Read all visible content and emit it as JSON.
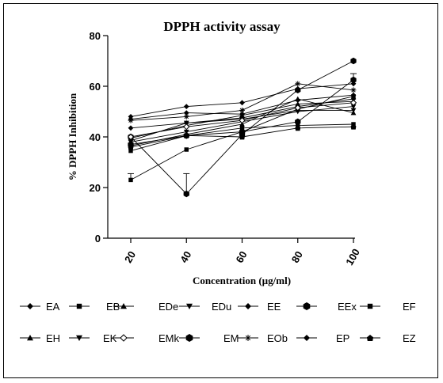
{
  "chart_data": {
    "type": "line",
    "title": "DPPH activity assay",
    "xlabel": "Concentration (µg/ml)",
    "ylabel": "% DPPH Inhibition",
    "x": [
      20,
      40,
      60,
      80,
      100
    ],
    "x_tick_labels": [
      "20",
      "40",
      "60",
      "80",
      "100"
    ],
    "ylim": [
      0,
      80
    ],
    "yticks": [
      0,
      20,
      40,
      60,
      80
    ],
    "y_tick_labels": [
      "0",
      "20",
      "40",
      "60",
      "80"
    ],
    "grid": false,
    "legend_position": "bottom",
    "series": [
      {
        "name": "EA",
        "marker": "diamond",
        "values": [
          43.5,
          45.5,
          47.5,
          52.0,
          55.0
        ]
      },
      {
        "name": "EB",
        "marker": "square",
        "values": [
          23.0,
          35.0,
          42.0,
          51.0,
          56.0
        ],
        "error": [
          2.5,
          0,
          0,
          0,
          0
        ]
      },
      {
        "name": "EDe",
        "marker": "triangle-up",
        "values": [
          39.5,
          44.5,
          48.5,
          53.0,
          54.0
        ]
      },
      {
        "name": "EDu",
        "marker": "triangle-down",
        "values": [
          38.0,
          42.0,
          46.0,
          50.0,
          52.0
        ]
      },
      {
        "name": "EE",
        "marker": "diamond",
        "values": [
          48.0,
          52.0,
          53.5,
          59.0,
          61.0
        ]
      },
      {
        "name": "EEx",
        "marker": "hexagon",
        "values": [
          40.0,
          17.5,
          41.0,
          58.5,
          70.0
        ],
        "error": [
          0,
          8.0,
          0,
          0,
          0
        ]
      },
      {
        "name": "EF",
        "marker": "square",
        "values": [
          34.5,
          40.5,
          43.5,
          44.5,
          45.0
        ]
      },
      {
        "name": "EH",
        "marker": "triangle-up",
        "values": [
          36.5,
          41.0,
          45.0,
          55.0,
          49.5
        ]
      },
      {
        "name": "EK",
        "marker": "triangle-down",
        "values": [
          38.5,
          45.5,
          47.0,
          50.5,
          50.5
        ]
      },
      {
        "name": "EMk",
        "marker": "diamond-open",
        "values": [
          40.0,
          44.0,
          46.5,
          51.5,
          53.5
        ]
      },
      {
        "name": "EM",
        "marker": "hexagon",
        "values": [
          37.0,
          40.5,
          42.0,
          46.0,
          62.5
        ],
        "error": [
          0,
          0,
          0,
          0,
          2.5
        ]
      },
      {
        "name": "EOb",
        "marker": "star",
        "values": [
          46.5,
          48.0,
          50.5,
          61.0,
          58.5
        ]
      },
      {
        "name": "EP",
        "marker": "diamond",
        "values": [
          47.0,
          49.5,
          49.0,
          54.5,
          56.5
        ]
      },
      {
        "name": "EZ",
        "marker": "house",
        "values": [
          36.0,
          40.5,
          40.0,
          43.5,
          44.0
        ]
      }
    ]
  }
}
